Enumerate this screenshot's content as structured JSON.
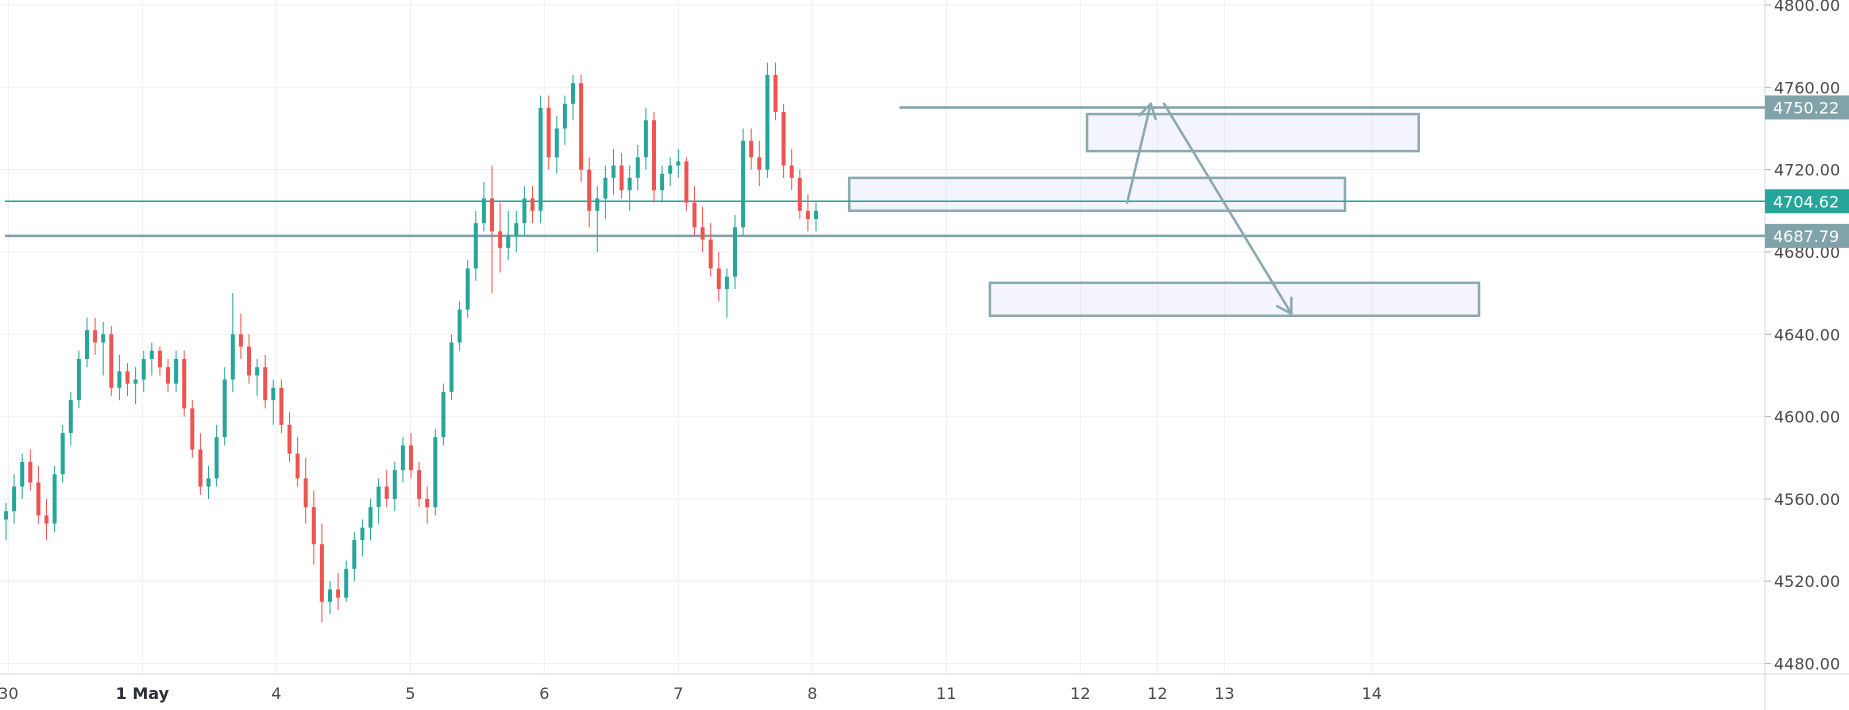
{
  "chart_data": {
    "type": "candlestick",
    "y_axis": {
      "range": [
        4472,
        4800
      ],
      "ticks": [
        4480,
        4520,
        4560,
        4600,
        4640,
        4680,
        4720,
        4760,
        4800
      ],
      "tick_labels": [
        "4480.00",
        "4520.00",
        "4560.00",
        "4600.00",
        "4640.00",
        "4680.00",
        "4720.00",
        "4760.00",
        "4800.00"
      ]
    },
    "x_axis": {
      "range": [
        0,
        18.2
      ],
      "ticks": [
        {
          "x": 0.05,
          "label": "30"
        },
        {
          "x": 2.05,
          "label": "1 May",
          "bold": true
        },
        {
          "x": 4.05,
          "label": "4"
        },
        {
          "x": 6.05,
          "label": "5"
        },
        {
          "x": 8.05,
          "label": "6"
        },
        {
          "x": 10.05,
          "label": "7"
        },
        {
          "x": 12.05,
          "label": "8"
        },
        {
          "x": 14.05,
          "label": "11"
        },
        {
          "x": 16.05,
          "label": "12"
        },
        {
          "x": 17.2,
          "label": "12"
        },
        {
          "x": 18.2,
          "label": "13"
        },
        {
          "x": 20.4,
          "label": "14"
        }
      ]
    },
    "candles_ohlc": [
      [
        4550,
        4558,
        4540,
        4554
      ],
      [
        4554,
        4572,
        4548,
        4566
      ],
      [
        4566,
        4582,
        4560,
        4578
      ],
      [
        4578,
        4584,
        4564,
        4568
      ],
      [
        4568,
        4576,
        4548,
        4552
      ],
      [
        4552,
        4560,
        4540,
        4548
      ],
      [
        4548,
        4576,
        4544,
        4572
      ],
      [
        4572,
        4596,
        4568,
        4592
      ],
      [
        4592,
        4612,
        4586,
        4608
      ],
      [
        4608,
        4632,
        4604,
        4628
      ],
      [
        4628,
        4648,
        4624,
        4642
      ],
      [
        4642,
        4648,
        4630,
        4636
      ],
      [
        4636,
        4646,
        4620,
        4640
      ],
      [
        4640,
        4644,
        4610,
        4614
      ],
      [
        4614,
        4630,
        4608,
        4622
      ],
      [
        4622,
        4626,
        4610,
        4616
      ],
      [
        4616,
        4624,
        4606,
        4618
      ],
      [
        4618,
        4632,
        4612,
        4628
      ],
      [
        4628,
        4636,
        4620,
        4632
      ],
      [
        4632,
        4634,
        4620,
        4624
      ],
      [
        4624,
        4628,
        4612,
        4616
      ],
      [
        4616,
        4632,
        4612,
        4628
      ],
      [
        4628,
        4632,
        4600,
        4604
      ],
      [
        4604,
        4608,
        4580,
        4584
      ],
      [
        4584,
        4592,
        4562,
        4566
      ],
      [
        4566,
        4576,
        4560,
        4570
      ],
      [
        4570,
        4596,
        4566,
        4590
      ],
      [
        4590,
        4624,
        4586,
        4618
      ],
      [
        4618,
        4660,
        4612,
        4640
      ],
      [
        4640,
        4650,
        4628,
        4634
      ],
      [
        4634,
        4640,
        4616,
        4620
      ],
      [
        4620,
        4628,
        4610,
        4624
      ],
      [
        4624,
        4630,
        4604,
        4608
      ],
      [
        4608,
        4618,
        4596,
        4614
      ],
      [
        4614,
        4618,
        4592,
        4596
      ],
      [
        4596,
        4602,
        4578,
        4582
      ],
      [
        4582,
        4590,
        4566,
        4570
      ],
      [
        4570,
        4580,
        4548,
        4556
      ],
      [
        4556,
        4564,
        4528,
        4538
      ],
      [
        4538,
        4548,
        4500,
        4510
      ],
      [
        4510,
        4520,
        4504,
        4516
      ],
      [
        4516,
        4524,
        4506,
        4512
      ],
      [
        4512,
        4530,
        4510,
        4526
      ],
      [
        4526,
        4544,
        4520,
        4540
      ],
      [
        4540,
        4550,
        4532,
        4546
      ],
      [
        4546,
        4560,
        4540,
        4556
      ],
      [
        4556,
        4570,
        4548,
        4566
      ],
      [
        4566,
        4574,
        4556,
        4560
      ],
      [
        4560,
        4578,
        4554,
        4574
      ],
      [
        4574,
        4590,
        4568,
        4586
      ],
      [
        4586,
        4592,
        4570,
        4574
      ],
      [
        4574,
        4578,
        4556,
        4560
      ],
      [
        4560,
        4566,
        4548,
        4556
      ],
      [
        4556,
        4594,
        4552,
        4590
      ],
      [
        4590,
        4616,
        4586,
        4612
      ],
      [
        4612,
        4640,
        4608,
        4636
      ],
      [
        4636,
        4656,
        4632,
        4652
      ],
      [
        4652,
        4676,
        4648,
        4672
      ],
      [
        4672,
        4700,
        4666,
        4694
      ],
      [
        4694,
        4714,
        4690,
        4706
      ],
      [
        4706,
        4722,
        4660,
        4690
      ],
      [
        4690,
        4704,
        4670,
        4682
      ],
      [
        4682,
        4700,
        4676,
        4688
      ],
      [
        4688,
        4700,
        4680,
        4694
      ],
      [
        4694,
        4712,
        4688,
        4706
      ],
      [
        4706,
        4712,
        4694,
        4700
      ],
      [
        4700,
        4756,
        4694,
        4750
      ],
      [
        4750,
        4756,
        4720,
        4726
      ],
      [
        4726,
        4746,
        4718,
        4740
      ],
      [
        4740,
        4756,
        4732,
        4752
      ],
      [
        4752,
        4766,
        4744,
        4762
      ],
      [
        4762,
        4766,
        4714,
        4720
      ],
      [
        4720,
        4726,
        4692,
        4700
      ],
      [
        4700,
        4712,
        4680,
        4706
      ],
      [
        4706,
        4722,
        4696,
        4716
      ],
      [
        4716,
        4730,
        4708,
        4722
      ],
      [
        4722,
        4728,
        4706,
        4710
      ],
      [
        4710,
        4722,
        4700,
        4716
      ],
      [
        4716,
        4732,
        4710,
        4726
      ],
      [
        4726,
        4750,
        4720,
        4744
      ],
      [
        4744,
        4748,
        4704,
        4710
      ],
      [
        4710,
        4722,
        4704,
        4718
      ],
      [
        4718,
        4726,
        4712,
        4722
      ],
      [
        4722,
        4730,
        4716,
        4724
      ],
      [
        4724,
        4726,
        4700,
        4704
      ],
      [
        4704,
        4712,
        4688,
        4692
      ],
      [
        4692,
        4702,
        4680,
        4686
      ],
      [
        4686,
        4694,
        4668,
        4672
      ],
      [
        4672,
        4680,
        4656,
        4662
      ],
      [
        4662,
        4672,
        4648,
        4668
      ],
      [
        4668,
        4698,
        4662,
        4692
      ],
      [
        4692,
        4740,
        4688,
        4734
      ],
      [
        4734,
        4740,
        4720,
        4726
      ],
      [
        4726,
        4734,
        4712,
        4720
      ],
      [
        4720,
        4772,
        4716,
        4766
      ],
      [
        4766,
        4772,
        4744,
        4748
      ],
      [
        4748,
        4752,
        4716,
        4722
      ],
      [
        4722,
        4730,
        4710,
        4716
      ],
      [
        4716,
        4720,
        4696,
        4700
      ],
      [
        4700,
        4708,
        4690,
        4696
      ],
      [
        4696,
        4704,
        4690,
        4700
      ]
    ],
    "colors": {
      "up": "#26a69a",
      "down": "#ef5350",
      "box": "#8aaab0"
    },
    "zones": [
      {
        "y_low": 4700,
        "y_high": 4716,
        "x_start": 12.6,
        "x_end": 20.0
      },
      {
        "y_low": 4729,
        "y_high": 4747,
        "x_start": 16.15,
        "x_end": 21.1
      },
      {
        "y_low": 4649,
        "y_high": 4665,
        "x_start": 14.7,
        "x_end": 22.0
      }
    ],
    "levels": [
      {
        "y": 4750.22,
        "label": "4750.22",
        "color": "#7fa3a9",
        "x_start": 13.35
      },
      {
        "y": 4704.62,
        "label": "4704.62",
        "color": "#26a69a",
        "x_start": 0
      },
      {
        "y": 4687.79,
        "label": "4687.79",
        "color": "#7fa3a9",
        "x_start": 0
      }
    ],
    "arrows": [
      {
        "from": [
          16.75,
          4704
        ],
        "to": [
          17.1,
          4752
        ]
      },
      {
        "from": [
          17.3,
          4752
        ],
        "to": [
          19.2,
          4650
        ]
      }
    ]
  }
}
